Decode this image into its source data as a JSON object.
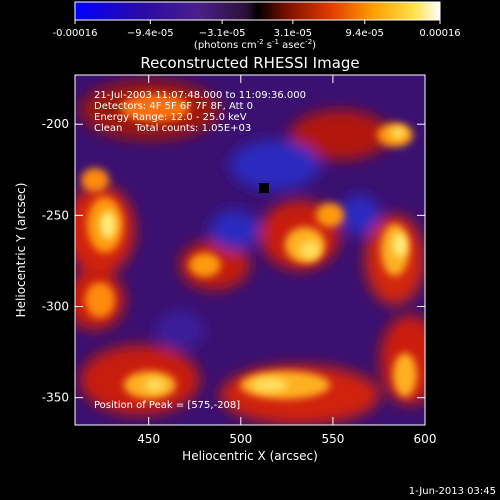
{
  "chart_data": {
    "type": "heatmap",
    "title": "Reconstructed RHESSI Image",
    "xlabel": "Heliocentric X (arcsec)",
    "ylabel": "Heliocentric Y (arcsec)",
    "xlim": [
      410,
      600
    ],
    "ylim": [
      -365,
      -173
    ],
    "x_ticks": [
      450,
      500,
      550,
      600
    ],
    "y_ticks": [
      -200,
      -250,
      -300,
      -350
    ],
    "colorbar": {
      "range": [
        -0.00016,
        0.00016
      ],
      "tick_values": [
        -0.00016,
        -9.4e-05,
        -3.1e-05,
        3.1e-05,
        9.4e-05,
        0.00016
      ],
      "tick_labels": [
        "-0.00016",
        "−9.4e-05",
        "−3.1e-05",
        "3.1e-05",
        "9.4e-05",
        "0.00016"
      ],
      "units_text": "(photons cm",
      "units_exp1": "-2",
      "units_mid": " s",
      "units_exp2": "-1",
      "units_tail": " asec",
      "units_exp3": "-2",
      "units_close": ")",
      "colormap": [
        "#0000ff",
        "#2a0aa8",
        "#4b1f8a",
        "#2a1036",
        "#000000",
        "#7a0f00",
        "#e23a00",
        "#ffa000",
        "#ffe24a",
        "#ffffff"
      ]
    },
    "annotations": {
      "line1": "21-Jul-2003 11:07:48.000 to 11:09:36.000",
      "line2": "Detectors: 4F 5F 6F 7F 8F, Att 0",
      "line3": "Energy Range: 12.0 - 25.0 keV",
      "line4": "Clean    Total counts: 1.05E+03",
      "peak": "Position of Peak = [575,-208]"
    },
    "peak": [
      575,
      -208
    ],
    "date": "1-Jun-2013 03:45"
  }
}
